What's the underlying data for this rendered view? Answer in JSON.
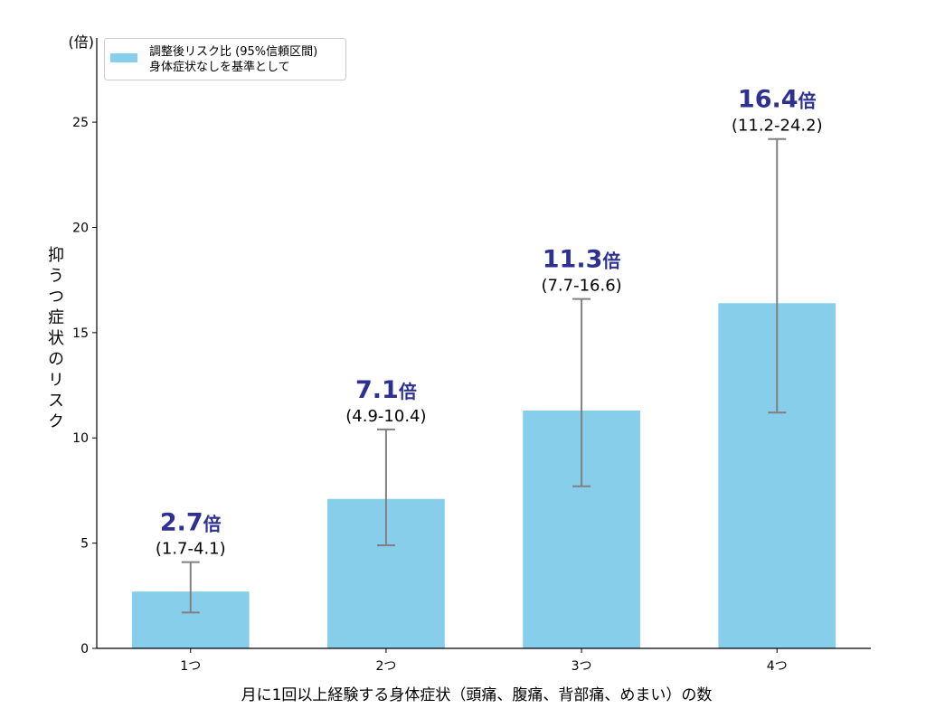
{
  "chart_data": {
    "type": "bar",
    "categories": [
      "1つ",
      "2つ",
      "3つ",
      "4つ"
    ],
    "values": [
      2.7,
      7.1,
      11.3,
      16.4
    ],
    "value_suffix": "倍",
    "ci_low": [
      1.7,
      4.9,
      7.7,
      11.2
    ],
    "ci_high": [
      4.1,
      10.4,
      16.6,
      24.2
    ],
    "ci_labels": [
      "(1.7-4.1)",
      "(4.9-10.4)",
      "(7.7-16.6)",
      "(11.2-24.2)"
    ],
    "xlabel": "月に1回以上経験する身体症状（頭痛、腹痛、背部痛、めまい）の数",
    "ylabel": "抑うつ症状のリスク",
    "y_unit_label": "(倍)",
    "yticks": [
      0,
      5,
      10,
      15,
      20,
      25
    ],
    "ylim": [
      0,
      29
    ],
    "grid": false,
    "legend": {
      "label_lines": [
        "調整後リスク比 (95%信頼区間)",
        "身体症状なしを基準として"
      ],
      "placement": "upper-left"
    },
    "colors": {
      "bar": "#87CEEB",
      "error_bar": "#808080",
      "value_label": "#2E3192",
      "axis": "#000000",
      "legend_border": "#CCCCCC"
    }
  }
}
